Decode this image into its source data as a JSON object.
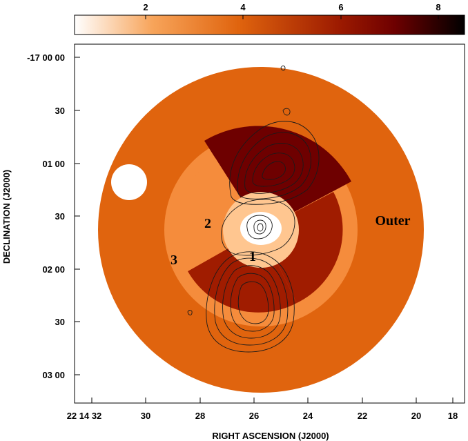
{
  "colorbar": {
    "tick_labels": [
      "2",
      "4",
      "6",
      "8"
    ],
    "gradient_colors": [
      "#ffffff",
      "#f7a45a",
      "#e0640e",
      "#9c1a00",
      "#6e0000",
      "#000000"
    ]
  },
  "axes": {
    "x_title": "RIGHT ASCENSION (J2000)",
    "y_title": "DECLINATION (J2000)",
    "x_tick_labels": [
      "22 14 32",
      "30",
      "28",
      "26",
      "24",
      "22",
      "20",
      "18"
    ],
    "y_tick_labels": [
      "-17 00 00",
      "30",
      "01 00",
      "30",
      "02 00",
      "30",
      "03 00"
    ]
  },
  "regions": {
    "label_1": "1",
    "label_2": "2",
    "label_3": "3",
    "label_outer": "Outer"
  },
  "colors": {
    "outer": "#e0640e",
    "ring3": "#f58c3c",
    "sector_north": "#6e0000",
    "sector_east": "#f58c3c",
    "sector_south": "#a01c00",
    "sector_west": "#a01c00",
    "core": "#ffc690"
  }
}
